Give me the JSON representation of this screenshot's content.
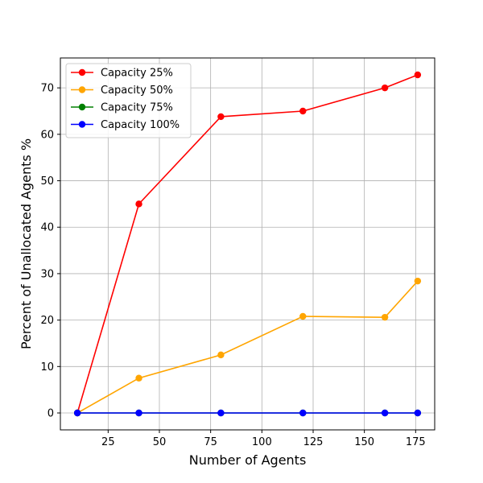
{
  "chart_data": {
    "type": "line",
    "x": [
      10,
      40,
      80,
      120,
      160,
      176
    ],
    "series": [
      {
        "name": "Capacity 25%",
        "color": "#ff0000",
        "values": [
          0,
          45,
          63.8,
          65,
          70,
          72.8
        ]
      },
      {
        "name": "Capacity 50%",
        "color": "#ffa500",
        "values": [
          0,
          7.5,
          12.5,
          20.8,
          20.6,
          28.4
        ]
      },
      {
        "name": "Capacity 75%",
        "color": "#008000",
        "values": [
          0,
          0,
          0,
          0,
          0,
          0
        ]
      },
      {
        "name": "Capacity 100%",
        "color": "#0000ff",
        "values": [
          0,
          0,
          0,
          0,
          0,
          0
        ]
      }
    ],
    "xlabel": "Number of Agents",
    "ylabel": "Percent of Unallocated Agents %",
    "xlim": [
      1.7,
      184.3
    ],
    "ylim": [
      -3.64,
      76.44
    ],
    "xticks": [
      25,
      50,
      75,
      100,
      125,
      150,
      175
    ],
    "yticks": [
      0,
      10,
      20,
      30,
      40,
      50,
      60,
      70
    ],
    "grid": true,
    "legend_position": "top-left"
  }
}
